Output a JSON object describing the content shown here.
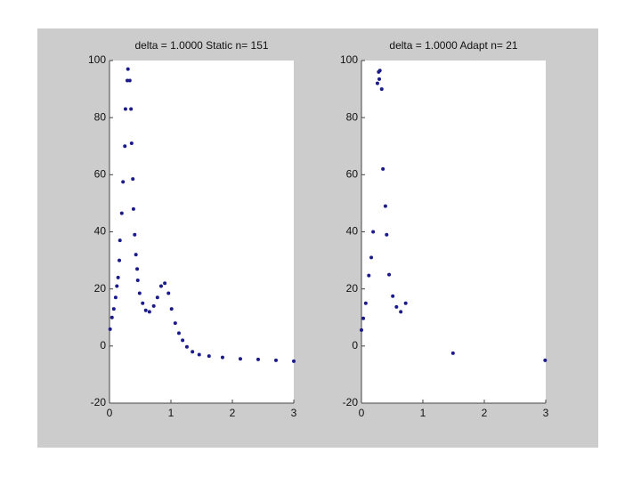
{
  "chart_data": [
    {
      "type": "scatter",
      "title": "delta =   1.0000 Static  n= 151",
      "color": "#1a1a8c",
      "x": [
        0.01,
        0.04,
        0.07,
        0.1,
        0.12,
        0.14,
        0.16,
        0.17,
        0.2,
        0.22,
        0.25,
        0.26,
        0.29,
        0.3,
        0.33,
        0.35,
        0.36,
        0.38,
        0.39,
        0.41,
        0.43,
        0.45,
        0.46,
        0.49,
        0.54,
        0.59,
        0.65,
        0.72,
        0.78,
        0.84,
        0.9,
        0.96,
        1.01,
        1.07,
        1.13,
        1.19,
        1.26,
        1.35,
        1.46,
        1.62,
        1.84,
        2.13,
        2.42,
        2.71,
        3
      ],
      "y": [
        5.9,
        10,
        13,
        17,
        21,
        24,
        30,
        37,
        46.5,
        57.5,
        70,
        83,
        93,
        97,
        93,
        83,
        71,
        58.5,
        48,
        39,
        32,
        27,
        23,
        18.5,
        15,
        12.5,
        12,
        14,
        17,
        21,
        22,
        18.5,
        13,
        8,
        4.5,
        2,
        -0.3,
        -2,
        -3,
        -3.5,
        -4,
        -4.5,
        -4.7,
        -5,
        -5.3
      ],
      "xlim": [
        0,
        3
      ],
      "xticks": [
        0,
        1,
        2,
        3
      ],
      "ylim": [
        -20,
        100
      ],
      "yticks": [
        -20,
        0,
        20,
        40,
        60,
        80,
        100
      ]
    },
    {
      "type": "scatter",
      "title": "delta =   1.0000   Adapt n= 21",
      "color": "#1a1a8c",
      "x": [
        0,
        0.03,
        0.07,
        0.12,
        0.16,
        0.19,
        0.26,
        0.28,
        0.3,
        0.29,
        0.33,
        0.35,
        0.39,
        0.41,
        0.45,
        0.51,
        0.57,
        0.64,
        0.72,
        1.49,
        2.99
      ],
      "y": [
        5.6,
        9.7,
        15,
        24.7,
        31,
        40,
        92,
        96,
        96.5,
        93.5,
        90,
        62,
        49,
        39,
        25,
        17.5,
        13.7,
        12,
        15,
        -2.5,
        -5
      ],
      "xlim": [
        0,
        3
      ],
      "xticks": [
        0,
        1,
        2,
        3
      ],
      "ylim": [
        -20,
        100
      ],
      "yticks": [
        -20,
        0,
        20,
        40,
        60,
        80,
        100
      ]
    }
  ]
}
